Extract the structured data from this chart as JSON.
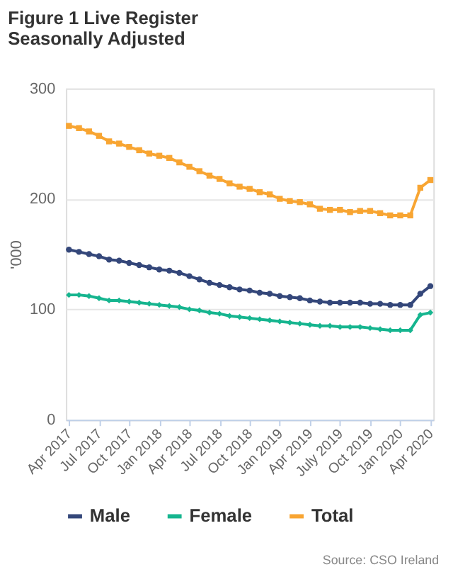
{
  "chart_data": {
    "type": "line",
    "title": "Figure 1 Live Register Seasonally Adjusted",
    "ylabel": "'000",
    "categories": [
      "Apr 2017",
      null,
      null,
      "Jul 2017",
      null,
      null,
      "Oct 2017",
      null,
      null,
      "Jan 2018",
      null,
      null,
      "Apr 2018",
      null,
      null,
      "Jul 2018",
      null,
      null,
      "Oct 2018",
      null,
      null,
      "Jan 2019",
      null,
      null,
      "Apr 2019",
      null,
      null,
      "July 2019",
      null,
      null,
      "Oct 2019",
      null,
      null,
      "Jan 2020",
      null,
      null,
      "Apr 2020"
    ],
    "series": [
      {
        "name": "Male",
        "color": "#34477a",
        "marker": "circle",
        "values": [
          154,
          152,
          150,
          148,
          145,
          144,
          142,
          140,
          138,
          136,
          135,
          133,
          130,
          127,
          124,
          122,
          120,
          118,
          117,
          115,
          114,
          112,
          111,
          110,
          108,
          107,
          106,
          106,
          106,
          106,
          105,
          105,
          104,
          104,
          104,
          114,
          121
        ]
      },
      {
        "name": "Female",
        "color": "#16b58f",
        "marker": "diamond",
        "values": [
          113,
          113,
          112,
          110,
          108,
          108,
          107,
          106,
          105,
          104,
          103,
          102,
          100,
          99,
          97,
          96,
          94,
          93,
          92,
          91,
          90,
          89,
          88,
          87,
          86,
          85,
          85,
          84,
          84,
          84,
          83,
          82,
          81,
          81,
          81,
          95,
          97
        ]
      },
      {
        "name": "Total",
        "color": "#f8a532",
        "marker": "square",
        "values": [
          266,
          264,
          261,
          257,
          252,
          250,
          247,
          244,
          241,
          239,
          237,
          233,
          229,
          225,
          221,
          218,
          214,
          211,
          209,
          206,
          204,
          200,
          198,
          197,
          195,
          191,
          190,
          190,
          188,
          189,
          189,
          187,
          185,
          185,
          185,
          210,
          217
        ]
      }
    ],
    "ylim": [
      0,
      300
    ],
    "yticks": [
      0,
      100,
      200,
      300
    ],
    "grid": "y",
    "legend": "bottom",
    "line_style": "solid",
    "annotations": [
      "Source: CSO Ireland"
    ]
  }
}
